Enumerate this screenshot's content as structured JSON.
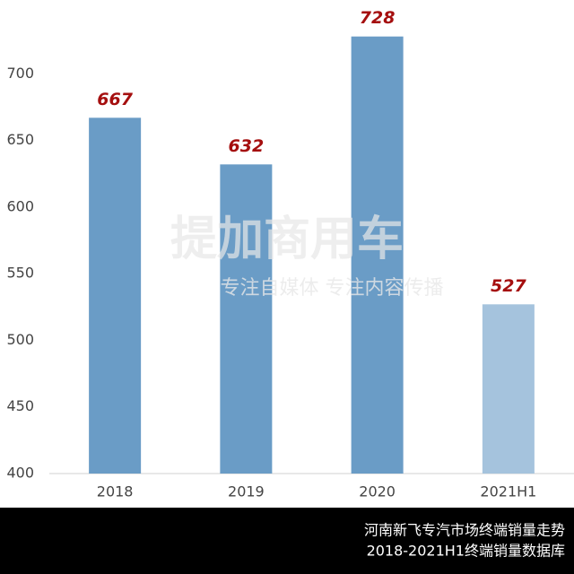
{
  "chart_data": {
    "type": "bar",
    "categories": [
      "2018",
      "2019",
      "2020",
      "2021H1"
    ],
    "values": [
      667,
      632,
      728,
      527
    ],
    "colors": [
      "#6a9cc6",
      "#6a9cc6",
      "#6a9cc6",
      "#a5c3dd"
    ],
    "label_color": "#a50f0f",
    "ylim": [
      400,
      750
    ],
    "yticks": [
      400,
      450,
      500,
      550,
      600,
      650,
      700
    ],
    "grid": false,
    "watermark": [
      "提加商用车",
      "专注自媒体 专注内容传播"
    ],
    "footnote": [
      "河南新飞专汽市场终端销量走势",
      "2018-2021H1终端销量数据库"
    ]
  }
}
